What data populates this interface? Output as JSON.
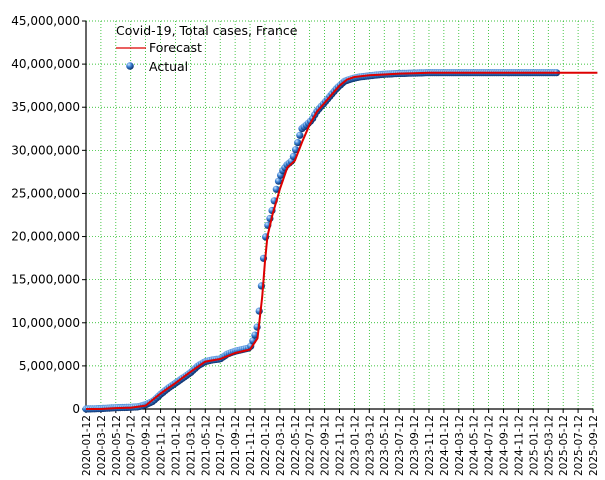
{
  "chart_data": {
    "type": "line",
    "title": "Covid-19, Total cases, France",
    "xlabel": "",
    "ylabel": "",
    "ylim": [
      0,
      45000000
    ],
    "y_ticks": [
      0,
      5000000,
      10000000,
      15000000,
      20000000,
      25000000,
      30000000,
      35000000,
      40000000,
      45000000
    ],
    "y_tick_labels": [
      "0",
      "5,000,000",
      "10,000,000",
      "15,000,000",
      "20,000,000",
      "25,000,000",
      "30,000,000",
      "35,000,000",
      "40,000,000",
      "45,000,000"
    ],
    "x_tick_labels": [
      "2020-01-12",
      "2020-03-12",
      "2020-05-12",
      "2020-07-12",
      "2020-09-12",
      "2020-11-12",
      "2021-01-12",
      "2021-03-12",
      "2021-05-12",
      "2021-07-12",
      "2021-09-12",
      "2021-11-12",
      "2022-01-12",
      "2022-03-12",
      "2022-05-12",
      "2022-07-12",
      "2022-09-12",
      "2022-11-12",
      "2023-01-12",
      "2023-03-12",
      "2023-05-12",
      "2023-07-12",
      "2023-09-12",
      "2023-11-12",
      "2024-01-12",
      "2024-03-12",
      "2024-05-12",
      "2024-07-12",
      "2024-09-12",
      "2024-11-12",
      "2025-01-12",
      "2025-03-12",
      "2025-05-12",
      "2025-07-12",
      "2025-09-12"
    ],
    "grid": true,
    "legend_position": "top-left",
    "colors": {
      "forecast": "#dd0000",
      "actual": "#1f5fbf",
      "grid": "#00b000",
      "axis": "#000000"
    },
    "series": [
      {
        "name": "Forecast",
        "kind": "line",
        "x": [
          "2020-01-12",
          "2020-03-12",
          "2020-05-12",
          "2020-07-12",
          "2020-09-12",
          "2020-10-12",
          "2020-11-12",
          "2021-01-12",
          "2021-03-12",
          "2021-05-12",
          "2021-07-12",
          "2021-09-12",
          "2021-11-12",
          "2021-12-12",
          "2022-01-01",
          "2022-01-12",
          "2022-01-22",
          "2022-02-12",
          "2022-03-12",
          "2022-04-12",
          "2022-05-12",
          "2022-06-12",
          "2022-07-12",
          "2022-08-12",
          "2022-09-12",
          "2022-10-12",
          "2022-11-12",
          "2022-12-12",
          "2023-01-12",
          "2023-03-12",
          "2023-05-12",
          "2023-07-12",
          "2023-09-12",
          "2023-11-12",
          "2024-03-12",
          "2024-07-12",
          "2024-11-12",
          "2025-03-12",
          "2025-07-12",
          "2025-09-30"
        ],
        "values": [
          0,
          0,
          100000,
          150000,
          400000,
          1100000,
          1800000,
          3000000,
          4300000,
          5500000,
          5800000,
          6500000,
          6900000,
          8200000,
          13000000,
          17000000,
          20000000,
          22500000,
          25500000,
          28000000,
          28800000,
          31000000,
          33000000,
          34500000,
          35500000,
          36500000,
          37500000,
          38200000,
          38500000,
          38700000,
          38800000,
          38900000,
          38950000,
          39000000,
          39000000,
          39000000,
          39000000,
          39000000,
          39000000,
          39000000
        ]
      },
      {
        "name": "Actual",
        "kind": "scatter",
        "x": [
          "2020-01-12",
          "2020-03-12",
          "2020-05-12",
          "2020-07-12",
          "2020-08-12",
          "2020-09-12",
          "2020-10-12",
          "2020-11-12",
          "2020-12-12",
          "2021-01-12",
          "2021-02-12",
          "2021-03-12",
          "2021-04-12",
          "2021-05-12",
          "2021-06-12",
          "2021-07-12",
          "2021-08-12",
          "2021-09-12",
          "2021-10-12",
          "2021-11-12",
          "2021-12-01",
          "2021-12-15",
          "2022-01-01",
          "2022-01-10",
          "2022-01-20",
          "2022-02-01",
          "2022-02-15",
          "2022-03-01",
          "2022-03-20",
          "2022-04-10",
          "2022-05-01",
          "2022-05-20",
          "2022-06-10",
          "2022-07-01",
          "2022-07-20",
          "2022-08-10",
          "2022-09-01",
          "2022-09-20",
          "2022-10-10",
          "2022-11-01",
          "2022-12-01",
          "2023-01-01",
          "2023-02-01",
          "2023-03-01",
          "2023-04-01",
          "2023-05-01",
          "2023-06-01",
          "2023-07-01",
          "2023-09-01",
          "2023-11-01",
          "2024-01-01",
          "2024-03-01",
          "2024-05-01",
          "2024-07-01",
          "2024-09-01",
          "2024-11-01",
          "2025-01-01",
          "2025-03-01",
          "2025-04-15"
        ],
        "values": [
          0,
          50000,
          150000,
          200000,
          250000,
          500000,
          900000,
          1700000,
          2400000,
          3000000,
          3600000,
          4200000,
          5000000,
          5500000,
          5700000,
          5800000,
          6400000,
          6700000,
          6900000,
          7100000,
          8500000,
          10000000,
          15500000,
          19000000,
          21000000,
          22000000,
          23500000,
          26000000,
          27500000,
          28300000,
          28800000,
          30500000,
          32500000,
          33000000,
          33500000,
          34500000,
          35200000,
          35800000,
          36500000,
          37200000,
          38000000,
          38300000,
          38500000,
          38600000,
          38700000,
          38800000,
          38850000,
          38900000,
          38950000,
          39000000,
          39000000,
          39000000,
          39000000,
          39000000,
          39000000,
          39000000,
          39000000,
          39000000,
          39000000
        ]
      }
    ]
  }
}
